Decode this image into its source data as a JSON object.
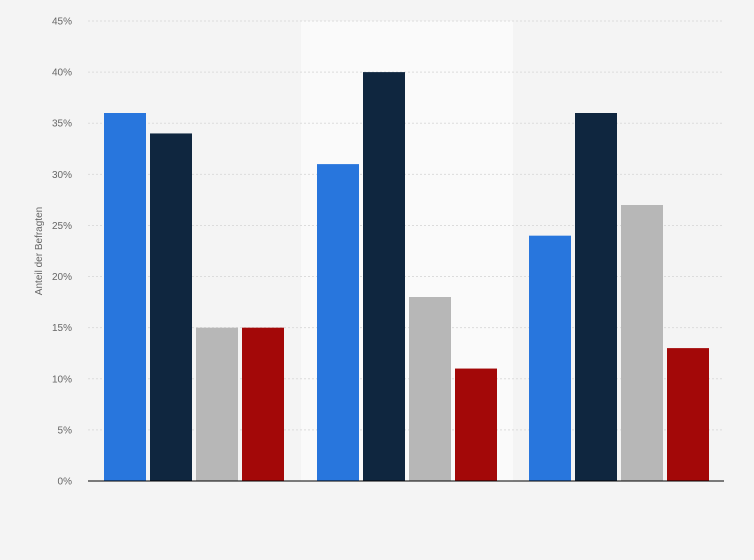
{
  "chart_data": {
    "type": "bar",
    "title": "",
    "xlabel": "",
    "ylabel": "Anteil der Befragten",
    "ylim": [
      0,
      45
    ],
    "ytick_step": 5,
    "ytick_suffix": "%",
    "grid": true,
    "highlight_group": 1,
    "categories": [
      "",
      "",
      ""
    ],
    "series": [
      {
        "color": "#2876dd",
        "values": [
          36,
          31,
          24
        ]
      },
      {
        "color": "#0f263f",
        "values": [
          34,
          40,
          36
        ]
      },
      {
        "color": "#b7b7b7",
        "values": [
          15,
          18,
          27
        ]
      },
      {
        "color": "#a30808",
        "values": [
          15,
          11,
          13
        ]
      }
    ]
  }
}
